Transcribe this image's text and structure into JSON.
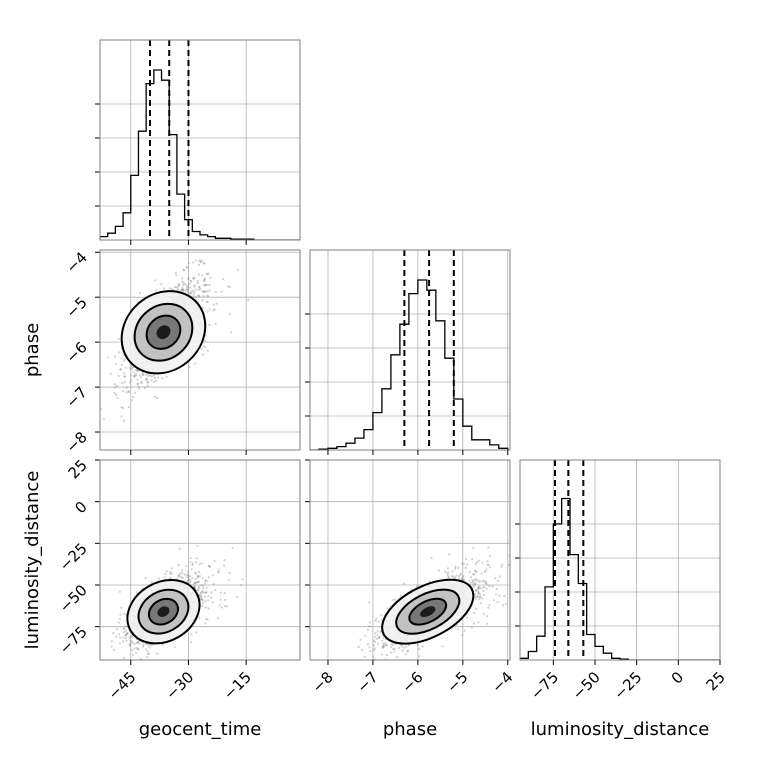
{
  "chart_data": {
    "type": "corner",
    "parameters": [
      "geocent_time",
      "phase",
      "luminosity_distance"
    ],
    "axis_labels": {
      "bottom": [
        "geocent_time",
        "phase",
        "luminosity_distance"
      ],
      "left": [
        "phase",
        "luminosity_distance"
      ]
    },
    "ranges": {
      "geocent_time": [
        -53,
        -1
      ],
      "phase": [
        -8.4,
        -3.95
      ],
      "luminosity_distance": [
        -95,
        25
      ]
    },
    "ticks": {
      "geocent_time": [
        -45,
        -30,
        -15
      ],
      "phase": [
        -8,
        -7,
        -6,
        -5,
        -4
      ],
      "luminosity_distance": [
        -75,
        -50,
        -25,
        0,
        25
      ]
    },
    "tick_labels": {
      "geocent_time": [
        "−45",
        "−30",
        "−15"
      ],
      "phase": [
        "−8",
        "−7",
        "−6",
        "−5",
        "−4"
      ],
      "luminosity_distance": [
        "−75",
        "−50",
        "−25",
        "0",
        "25"
      ]
    },
    "quantiles": {
      "geocent_time": [
        -40,
        -35,
        -30
      ],
      "phase": [
        -6.3,
        -5.75,
        -5.2
      ],
      "luminosity_distance": [
        -74,
        -66,
        -57
      ]
    },
    "histograms": {
      "geocent_time": {
        "bin_edges": [
          -53,
          -51,
          -49,
          -47,
          -45,
          -43,
          -41,
          -39,
          -37,
          -35,
          -33,
          -31,
          -29,
          -27,
          -25,
          -23,
          -21,
          -19,
          -17,
          -15,
          -13,
          -11,
          -9,
          -7,
          -5,
          -3,
          -1
        ],
        "counts": [
          0.02,
          0.04,
          0.08,
          0.16,
          0.38,
          0.64,
          0.92,
          1.0,
          0.94,
          0.62,
          0.27,
          0.12,
          0.05,
          0.03,
          0.02,
          0.01,
          0.01,
          0.005,
          0.005,
          0.005,
          0,
          0,
          0,
          0,
          0,
          0
        ]
      },
      "phase": {
        "bin_edges": [
          -8.4,
          -8.2,
          -8.0,
          -7.8,
          -7.6,
          -7.4,
          -7.2,
          -7.0,
          -6.8,
          -6.6,
          -6.4,
          -6.2,
          -6.0,
          -5.8,
          -5.6,
          -5.4,
          -5.2,
          -5.0,
          -4.8,
          -4.6,
          -4.4,
          -4.2,
          -4.0
        ],
        "counts": [
          0.0,
          0.005,
          0.01,
          0.02,
          0.04,
          0.07,
          0.12,
          0.22,
          0.36,
          0.56,
          0.74,
          0.92,
          1.0,
          0.94,
          0.76,
          0.54,
          0.3,
          0.14,
          0.06,
          0.06,
          0.03,
          0.01
        ]
      },
      "luminosity_distance": {
        "bin_edges": [
          -95,
          -90,
          -85,
          -80,
          -75,
          -70,
          -65,
          -60,
          -55,
          -50,
          -45,
          -40,
          -35,
          -30,
          -25,
          -20,
          -15,
          -10,
          -5,
          0,
          5,
          10,
          15,
          20,
          25
        ],
        "counts": [
          0.01,
          0.05,
          0.14,
          0.43,
          0.8,
          0.95,
          0.62,
          0.45,
          0.15,
          0.08,
          0.04,
          0.01,
          0.005,
          0,
          0,
          0,
          0,
          0,
          0,
          0,
          0,
          0,
          0,
          0
        ]
      }
    },
    "distributions_2d": {
      "phase_vs_geocent_time": {
        "mean": [
          -36.5,
          -5.78
        ],
        "sd": [
          4.8,
          0.55
        ],
        "corr": 0.68
      },
      "luminosity_distance_vs_geocent_time": {
        "mean": [
          -36.5,
          -66
        ],
        "sd": [
          4.8,
          10.5
        ],
        "corr": 0.6
      },
      "luminosity_distance_vs_phase": {
        "mean": [
          -5.78,
          -66
        ],
        "sd": [
          0.55,
          10.5
        ],
        "corr": 0.72
      }
    },
    "grid": true,
    "colors": {
      "line": "#000000",
      "grid": "#b0b0b0",
      "scatter": "#7a7a7a",
      "frame": "#808080"
    }
  }
}
